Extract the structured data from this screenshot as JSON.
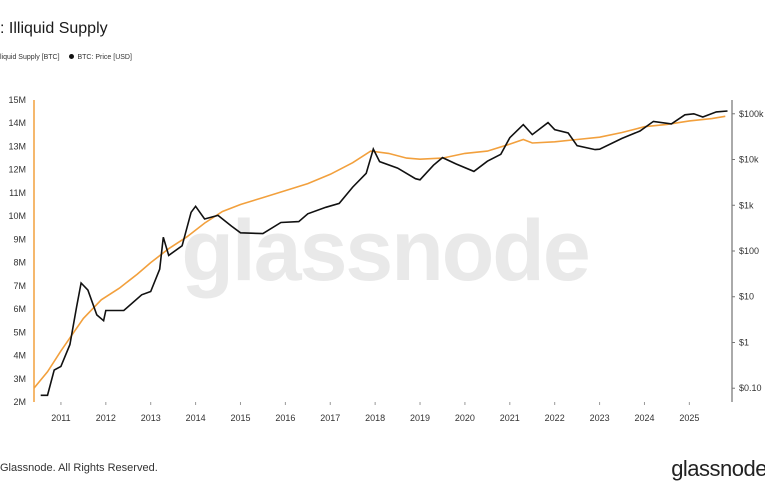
{
  "chart_data": {
    "type": "line",
    "title": ": Illiquid Supply",
    "watermark": "glassnode",
    "x_ticks": [
      "2011",
      "2012",
      "2013",
      "2014",
      "2015",
      "2016",
      "2017",
      "2018",
      "2019",
      "2020",
      "2021",
      "2022",
      "2023",
      "2024",
      "2025"
    ],
    "xlim": [
      2010.4,
      2025.95
    ],
    "left_axis": {
      "ticks": [
        "2M",
        "3M",
        "4M",
        "5M",
        "6M",
        "7M",
        "8M",
        "9M",
        "10M",
        "11M",
        "12M",
        "13M",
        "14M",
        "15M"
      ],
      "ylim": [
        2,
        15
      ],
      "unit": "M BTC"
    },
    "right_axis": {
      "scale": "log",
      "ticks": [
        "$0.10",
        "$1",
        "$10",
        "$100",
        "$1k",
        "$10k",
        "$100k"
      ],
      "tick_values": [
        0.1,
        1,
        10,
        100,
        1000,
        10000,
        100000
      ],
      "ylim": [
        0.05,
        200000
      ]
    },
    "series": [
      {
        "name": "Illiquid Supply [BTC]",
        "legend_label": "liquid Supply [BTC]",
        "axis": "left",
        "color": "#f2a03d",
        "points": [
          [
            2010.4,
            2.6
          ],
          [
            2010.7,
            3.3
          ],
          [
            2011.0,
            4.2
          ],
          [
            2011.5,
            5.6
          ],
          [
            2011.9,
            6.4
          ],
          [
            2012.3,
            6.9
          ],
          [
            2012.7,
            7.5
          ],
          [
            2013.0,
            8.0
          ],
          [
            2013.4,
            8.6
          ],
          [
            2013.8,
            9.1
          ],
          [
            2014.2,
            9.7
          ],
          [
            2014.6,
            10.2
          ],
          [
            2015.0,
            10.5
          ],
          [
            2015.5,
            10.8
          ],
          [
            2016.0,
            11.1
          ],
          [
            2016.5,
            11.4
          ],
          [
            2017.0,
            11.8
          ],
          [
            2017.5,
            12.3
          ],
          [
            2017.9,
            12.8
          ],
          [
            2018.3,
            12.7
          ],
          [
            2018.7,
            12.5
          ],
          [
            2019.0,
            12.45
          ],
          [
            2019.5,
            12.5
          ],
          [
            2020.0,
            12.7
          ],
          [
            2020.5,
            12.8
          ],
          [
            2021.0,
            13.1
          ],
          [
            2021.3,
            13.3
          ],
          [
            2021.5,
            13.15
          ],
          [
            2022.0,
            13.2
          ],
          [
            2022.5,
            13.3
          ],
          [
            2023.0,
            13.4
          ],
          [
            2023.5,
            13.6
          ],
          [
            2024.0,
            13.85
          ],
          [
            2024.5,
            13.95
          ],
          [
            2025.0,
            14.1
          ],
          [
            2025.5,
            14.2
          ],
          [
            2025.8,
            14.3
          ]
        ]
      },
      {
        "name": "BTC: Price [USD]",
        "legend_label": "BTC: Price [USD]",
        "axis": "right",
        "color": "#111111",
        "points": [
          [
            2010.55,
            0.07
          ],
          [
            2010.7,
            0.07
          ],
          [
            2010.85,
            0.25
          ],
          [
            2011.0,
            0.3
          ],
          [
            2011.2,
            0.9
          ],
          [
            2011.35,
            6
          ],
          [
            2011.45,
            20
          ],
          [
            2011.6,
            14
          ],
          [
            2011.8,
            4
          ],
          [
            2011.95,
            3
          ],
          [
            2012.0,
            5
          ],
          [
            2012.4,
            5
          ],
          [
            2012.8,
            11
          ],
          [
            2013.0,
            13
          ],
          [
            2013.2,
            40
          ],
          [
            2013.28,
            200
          ],
          [
            2013.4,
            80
          ],
          [
            2013.7,
            130
          ],
          [
            2013.9,
            700
          ],
          [
            2014.0,
            950
          ],
          [
            2014.2,
            500
          ],
          [
            2014.5,
            600
          ],
          [
            2014.8,
            350
          ],
          [
            2015.0,
            250
          ],
          [
            2015.5,
            240
          ],
          [
            2015.9,
            420
          ],
          [
            2016.3,
            440
          ],
          [
            2016.5,
            650
          ],
          [
            2016.9,
            900
          ],
          [
            2017.2,
            1100
          ],
          [
            2017.5,
            2500
          ],
          [
            2017.8,
            5000
          ],
          [
            2017.96,
            17000
          ],
          [
            2018.1,
            9000
          ],
          [
            2018.5,
            6500
          ],
          [
            2018.9,
            3800
          ],
          [
            2019.0,
            3600
          ],
          [
            2019.3,
            7500
          ],
          [
            2019.5,
            11000
          ],
          [
            2019.8,
            8000
          ],
          [
            2020.2,
            5500
          ],
          [
            2020.5,
            9200
          ],
          [
            2020.8,
            13000
          ],
          [
            2021.0,
            30000
          ],
          [
            2021.3,
            58000
          ],
          [
            2021.5,
            35000
          ],
          [
            2021.85,
            64000
          ],
          [
            2022.0,
            45000
          ],
          [
            2022.3,
            38000
          ],
          [
            2022.5,
            20000
          ],
          [
            2022.9,
            16500
          ],
          [
            2023.0,
            16800
          ],
          [
            2023.5,
            29000
          ],
          [
            2023.9,
            42000
          ],
          [
            2024.2,
            68000
          ],
          [
            2024.6,
            60000
          ],
          [
            2024.9,
            95000
          ],
          [
            2025.1,
            100000
          ],
          [
            2025.3,
            85000
          ],
          [
            2025.6,
            110000
          ],
          [
            2025.85,
            115000
          ]
        ]
      }
    ]
  },
  "footer": {
    "copyright": "Glassnode. All Rights Reserved.",
    "brand": "glassnode"
  },
  "colors": {
    "illiquid": "#f2a03d",
    "price": "#111111"
  }
}
